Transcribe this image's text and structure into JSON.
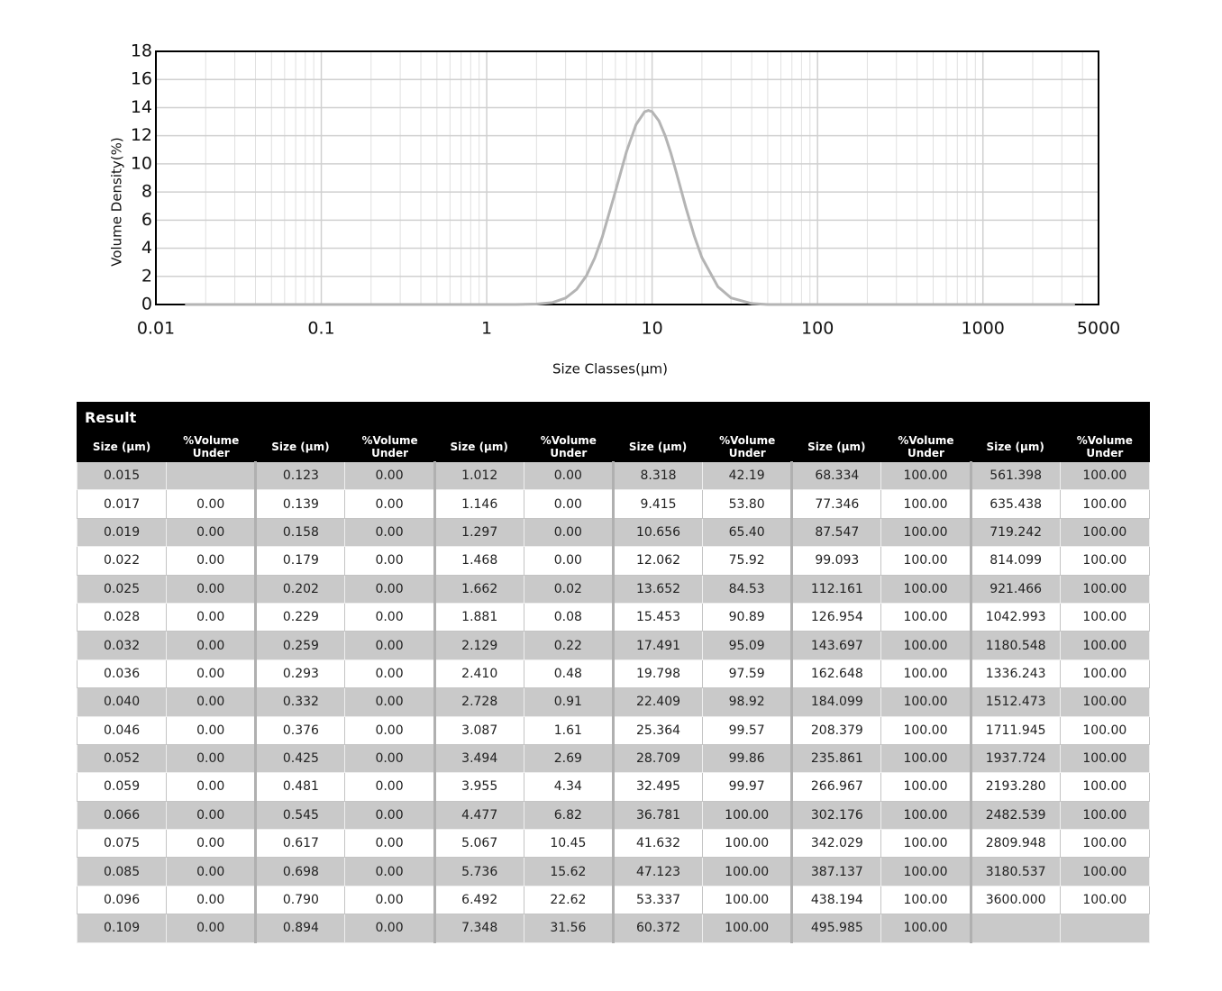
{
  "chart_data": {
    "type": "line",
    "ylabel": "Volume Density(%)",
    "xlabel": "Size Classes(μm)",
    "x": [
      0.015,
      1,
      1.5,
      2,
      2.5,
      3,
      3.5,
      4,
      4.5,
      5,
      6,
      7,
      8,
      9,
      9.5,
      10,
      11,
      12,
      13,
      14,
      16,
      18,
      20,
      25,
      30,
      40,
      50,
      3600
    ],
    "series": [
      {
        "color": "#b4b4b4",
        "values": [
          0,
          0,
          0,
          0.03,
          0.14,
          0.46,
          1.08,
          2.03,
          3.31,
          4.81,
          8.04,
          10.87,
          12.8,
          13.7,
          13.8,
          13.71,
          13.05,
          11.99,
          10.74,
          9.4,
          6.89,
          4.86,
          3.34,
          1.26,
          0.47,
          0.07,
          0,
          0
        ]
      }
    ],
    "xscale": "log",
    "xlim": [
      0.01,
      5000
    ],
    "xticks": [
      0.01,
      0.1,
      1,
      10,
      100,
      1000,
      5000
    ],
    "ylim": [
      0,
      18
    ],
    "yticks": [
      0,
      2,
      4,
      6,
      8,
      10,
      12,
      14,
      16,
      18
    ],
    "grid": true
  },
  "table": {
    "title": "Result",
    "headers": [
      "Size (μm)",
      "%Volume Under"
    ],
    "groups": [
      {
        "sizes": [
          "0.015",
          "0.017",
          "0.019",
          "0.022",
          "0.025",
          "0.028",
          "0.032",
          "0.036",
          "0.040",
          "0.046",
          "0.052",
          "0.059",
          "0.066",
          "0.075",
          "0.085",
          "0.096",
          "0.109"
        ],
        "under": [
          null,
          "0.00",
          "0.00",
          "0.00",
          "0.00",
          "0.00",
          "0.00",
          "0.00",
          "0.00",
          "0.00",
          "0.00",
          "0.00",
          "0.00",
          "0.00",
          "0.00",
          "0.00",
          "0.00"
        ]
      },
      {
        "sizes": [
          "0.123",
          "0.139",
          "0.158",
          "0.179",
          "0.202",
          "0.229",
          "0.259",
          "0.293",
          "0.332",
          "0.376",
          "0.425",
          "0.481",
          "0.545",
          "0.617",
          "0.698",
          "0.790",
          "0.894"
        ],
        "under": [
          "0.00",
          "0.00",
          "0.00",
          "0.00",
          "0.00",
          "0.00",
          "0.00",
          "0.00",
          "0.00",
          "0.00",
          "0.00",
          "0.00",
          "0.00",
          "0.00",
          "0.00",
          "0.00",
          "0.00"
        ]
      },
      {
        "sizes": [
          "1.012",
          "1.146",
          "1.297",
          "1.468",
          "1.662",
          "1.881",
          "2.129",
          "2.410",
          "2.728",
          "3.087",
          "3.494",
          "3.955",
          "4.477",
          "5.067",
          "5.736",
          "6.492",
          "7.348"
        ],
        "under": [
          "0.00",
          "0.00",
          "0.00",
          "0.00",
          "0.02",
          "0.08",
          "0.22",
          "0.48",
          "0.91",
          "1.61",
          "2.69",
          "4.34",
          "6.82",
          "10.45",
          "15.62",
          "22.62",
          "31.56"
        ]
      },
      {
        "sizes": [
          "8.318",
          "9.415",
          "10.656",
          "12.062",
          "13.652",
          "15.453",
          "17.491",
          "19.798",
          "22.409",
          "25.364",
          "28.709",
          "32.495",
          "36.781",
          "41.632",
          "47.123",
          "53.337",
          "60.372"
        ],
        "under": [
          "42.19",
          "53.80",
          "65.40",
          "75.92",
          "84.53",
          "90.89",
          "95.09",
          "97.59",
          "98.92",
          "99.57",
          "99.86",
          "99.97",
          "100.00",
          "100.00",
          "100.00",
          "100.00",
          "100.00"
        ]
      },
      {
        "sizes": [
          "68.334",
          "77.346",
          "87.547",
          "99.093",
          "112.161",
          "126.954",
          "143.697",
          "162.648",
          "184.099",
          "208.379",
          "235.861",
          "266.967",
          "302.176",
          "342.029",
          "387.137",
          "438.194",
          "495.985"
        ],
        "under": [
          "100.00",
          "100.00",
          "100.00",
          "100.00",
          "100.00",
          "100.00",
          "100.00",
          "100.00",
          "100.00",
          "100.00",
          "100.00",
          "100.00",
          "100.00",
          "100.00",
          "100.00",
          "100.00",
          "100.00"
        ]
      },
      {
        "sizes": [
          "561.398",
          "635.438",
          "719.242",
          "814.099",
          "921.466",
          "1042.993",
          "1180.548",
          "1336.243",
          "1512.473",
          "1711.945",
          "1937.724",
          "2193.280",
          "2482.539",
          "2809.948",
          "3180.537",
          "3600.000",
          null
        ],
        "under": [
          "100.00",
          "100.00",
          "100.00",
          "100.00",
          "100.00",
          "100.00",
          "100.00",
          "100.00",
          "100.00",
          "100.00",
          "100.00",
          "100.00",
          "100.00",
          "100.00",
          "100.00",
          "100.00",
          null
        ]
      }
    ]
  }
}
